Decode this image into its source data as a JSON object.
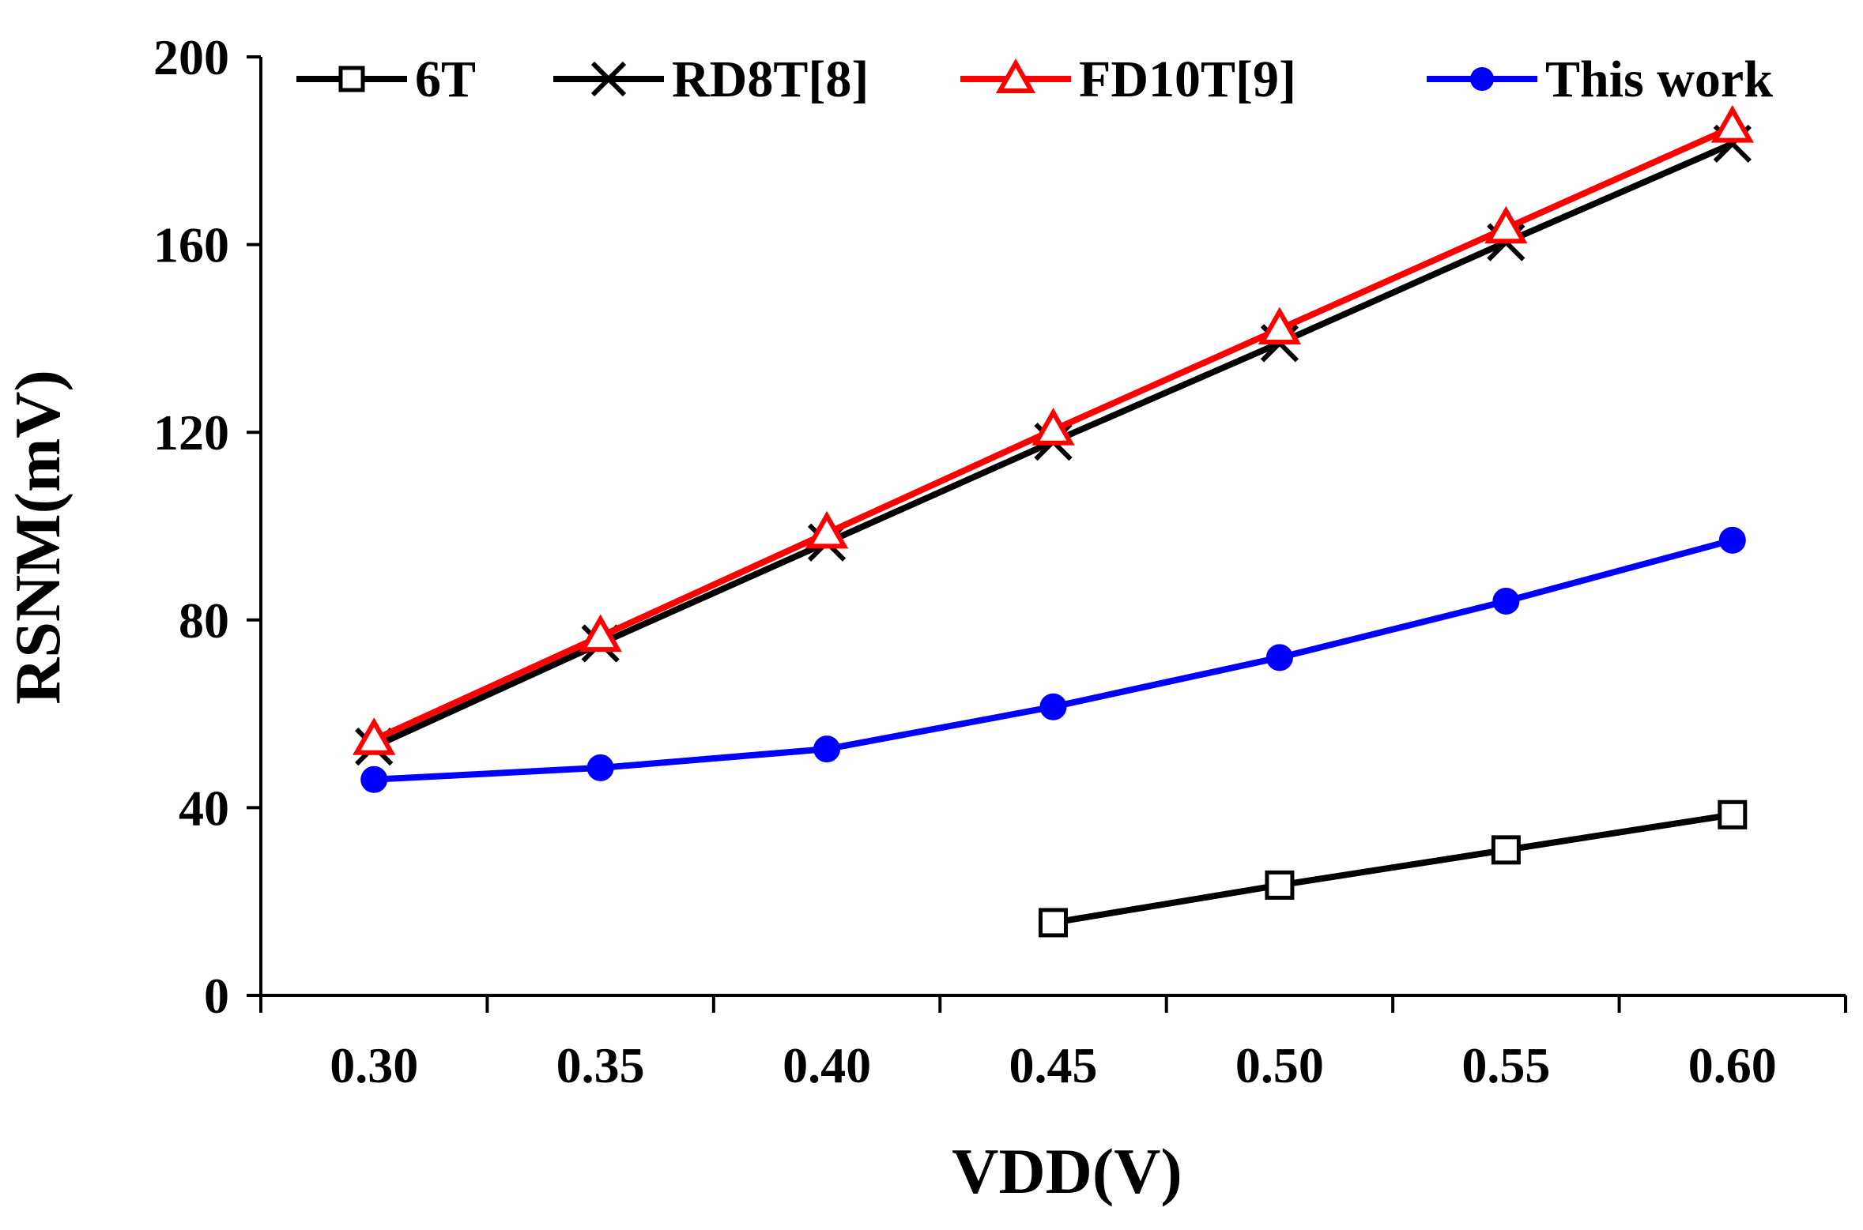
{
  "chart_data": {
    "type": "line",
    "x": [
      0.3,
      0.35,
      0.4,
      0.45,
      0.5,
      0.55,
      0.6
    ],
    "x_tick_labels": [
      "0.30",
      "0.35",
      "0.40",
      "0.45",
      "0.50",
      "0.55",
      "0.60"
    ],
    "y_ticks": [
      0,
      40,
      80,
      120,
      160,
      200
    ],
    "y_tick_labels": [
      "0",
      "40",
      "80",
      "120",
      "160",
      "200"
    ],
    "xlabel": "VDD(V)",
    "ylabel": "RSNM(mV)",
    "xlim": [
      0.275,
      0.625
    ],
    "ylim": [
      0,
      200
    ],
    "grid": false,
    "legend_position": "top",
    "series": [
      {
        "name": "6T",
        "color": "#000000",
        "marker": "open-square",
        "x": [
          0.45,
          0.5,
          0.55,
          0.6
        ],
        "values": [
          15.5,
          23.5,
          31,
          38.5
        ]
      },
      {
        "name": "RD8T[8]",
        "color": "#000000",
        "marker": "x-cross",
        "x": [
          0.3,
          0.35,
          0.4,
          0.45,
          0.5,
          0.55,
          0.6
        ],
        "values": [
          53,
          75,
          96.5,
          118,
          139,
          160.5,
          181.5
        ]
      },
      {
        "name": "FD10T[9]",
        "color": "#ff0000",
        "marker": "open-triangle",
        "x": [
          0.3,
          0.35,
          0.4,
          0.45,
          0.5,
          0.55,
          0.6
        ],
        "values": [
          54.5,
          76.5,
          98.5,
          120.5,
          142,
          163.5,
          185
        ]
      },
      {
        "name": "This work",
        "color": "#0000ff",
        "marker": "filled-circle",
        "x": [
          0.3,
          0.35,
          0.4,
          0.45,
          0.5,
          0.55,
          0.6
        ],
        "values": [
          46,
          48.5,
          52.5,
          61.5,
          72,
          84,
          97
        ]
      }
    ]
  }
}
